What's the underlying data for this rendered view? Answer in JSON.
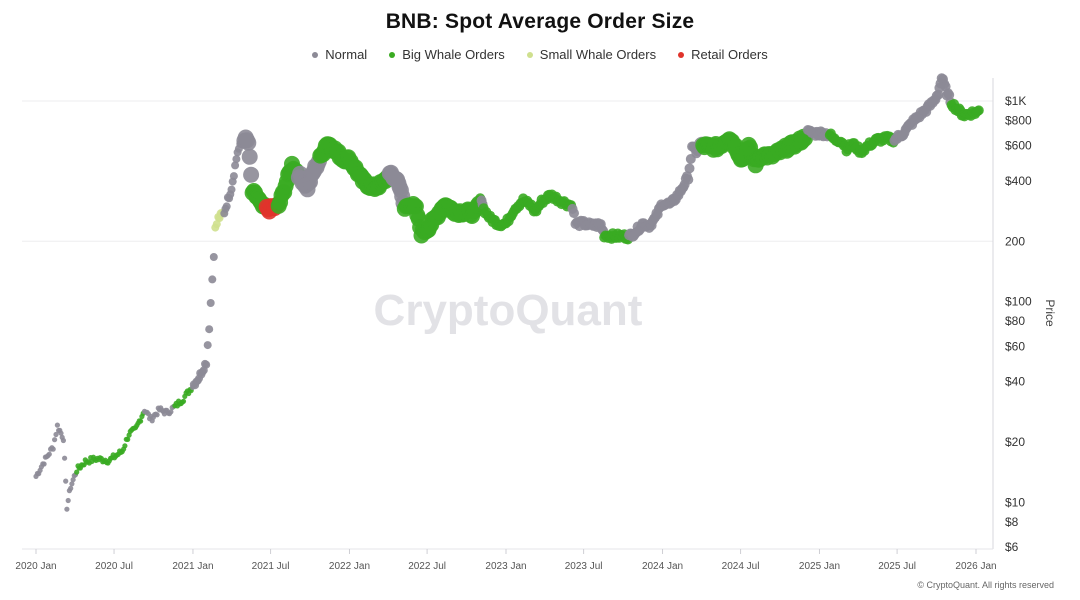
{
  "chart_data": {
    "type": "scatter",
    "title": "BNB: Spot Average Order Size",
    "ylabel": "Price",
    "yscale": "log",
    "ylim": [
      6,
      1400
    ],
    "xlim": [
      "2020-01-01",
      "2026-01-20"
    ],
    "x_ticks": [
      {
        "date": "2020-01-01",
        "label": "2020 Jan"
      },
      {
        "date": "2020-07-01",
        "label": "2020 Jul"
      },
      {
        "date": "2021-01-01",
        "label": "2021 Jan"
      },
      {
        "date": "2021-07-01",
        "label": "2021 Jul"
      },
      {
        "date": "2022-01-01",
        "label": "2022 Jan"
      },
      {
        "date": "2022-07-01",
        "label": "2022 Jul"
      },
      {
        "date": "2023-01-01",
        "label": "2023 Jan"
      },
      {
        "date": "2023-07-01",
        "label": "2023 Jul"
      },
      {
        "date": "2024-01-01",
        "label": "2024 Jan"
      },
      {
        "date": "2024-07-01",
        "label": "2024 Jul"
      },
      {
        "date": "2025-01-01",
        "label": "2025 Jan"
      },
      {
        "date": "2025-07-01",
        "label": "2025 Jul"
      },
      {
        "date": "2026-01-01",
        "label": "2026 Jan"
      }
    ],
    "y_ticks": [
      {
        "value": 1000,
        "label": "$1K"
      },
      {
        "value": 800,
        "label": "$800"
      },
      {
        "value": 600,
        "label": "$600"
      },
      {
        "value": 400,
        "label": "$400"
      },
      {
        "value": 200,
        "label": "200"
      },
      {
        "value": 100,
        "label": "$100"
      },
      {
        "value": 80,
        "label": "$80"
      },
      {
        "value": 60,
        "label": "$60"
      },
      {
        "value": 40,
        "label": "$40"
      },
      {
        "value": 20,
        "label": "$20"
      },
      {
        "value": 10,
        "label": "$10"
      },
      {
        "value": 8,
        "label": "$8"
      },
      {
        "value": 6,
        "label": "$6"
      }
    ],
    "gridlines": [
      1000,
      200
    ],
    "legend_position": "top-center",
    "series": [
      {
        "name": "Normal",
        "color": "#8c8a96"
      },
      {
        "name": "Big Whale Orders",
        "color": "#3aab22"
      },
      {
        "name": "Small Whale Orders",
        "color": "#cfe08e"
      },
      {
        "name": "Retail Orders",
        "color": "#e0332b"
      }
    ],
    "price_path": [
      [
        "2020-01-01",
        13.5,
        0
      ],
      [
        "2020-01-20",
        16,
        0
      ],
      [
        "2020-02-10",
        19,
        0
      ],
      [
        "2020-02-20",
        24,
        0
      ],
      [
        "2020-03-05",
        21,
        0
      ],
      [
        "2020-03-13",
        9.5,
        0
      ],
      [
        "2020-03-22",
        12,
        0
      ],
      [
        "2020-04-05",
        14.5,
        1
      ],
      [
        "2020-04-25",
        16,
        1
      ],
      [
        "2020-05-20",
        16.5,
        1
      ],
      [
        "2020-06-20",
        16.2,
        1
      ],
      [
        "2020-07-20",
        18,
        1
      ],
      [
        "2020-08-05",
        22,
        1
      ],
      [
        "2020-08-20",
        23,
        1
      ],
      [
        "2020-09-10",
        29,
        0
      ],
      [
        "2020-09-25",
        26,
        0
      ],
      [
        "2020-10-15",
        29,
        0
      ],
      [
        "2020-11-01",
        28,
        0
      ],
      [
        "2020-11-20",
        30,
        1
      ],
      [
        "2020-12-10",
        33,
        1
      ],
      [
        "2020-12-31",
        38,
        0
      ],
      [
        "2021-01-15",
        42,
        0
      ],
      [
        "2021-02-01",
        50,
        0
      ],
      [
        "2021-02-08",
        75,
        0
      ],
      [
        "2021-02-15",
        130,
        0
      ],
      [
        "2021-02-22",
        230,
        2
      ],
      [
        "2021-03-01",
        260,
        2
      ],
      [
        "2021-03-15",
        280,
        0
      ],
      [
        "2021-04-01",
        370,
        0
      ],
      [
        "2021-04-15",
        560,
        0
      ],
      [
        "2021-05-01",
        650,
        0
      ],
      [
        "2021-05-10",
        620,
        0
      ],
      [
        "2021-05-20",
        350,
        1
      ],
      [
        "2021-06-01",
        330,
        1
      ],
      [
        "2021-06-10",
        300,
        1
      ],
      [
        "2021-06-22",
        290,
        3
      ],
      [
        "2021-07-01",
        290,
        3
      ],
      [
        "2021-07-20",
        300,
        1
      ],
      [
        "2021-08-05",
        380,
        1
      ],
      [
        "2021-08-20",
        480,
        1
      ],
      [
        "2021-09-05",
        430,
        0
      ],
      [
        "2021-09-25",
        370,
        0
      ],
      [
        "2021-10-10",
        450,
        0
      ],
      [
        "2021-10-25",
        520,
        1
      ],
      [
        "2021-11-10",
        620,
        1
      ],
      [
        "2021-11-25",
        580,
        1
      ],
      [
        "2021-12-15",
        520,
        1
      ],
      [
        "2022-01-01",
        510,
        1
      ],
      [
        "2022-01-15",
        460,
        1
      ],
      [
        "2022-02-01",
        400,
        1
      ],
      [
        "2022-02-15",
        380,
        1
      ],
      [
        "2022-03-01",
        370,
        1
      ],
      [
        "2022-03-20",
        390,
        1
      ],
      [
        "2022-04-05",
        430,
        0
      ],
      [
        "2022-04-25",
        400,
        0
      ],
      [
        "2022-05-10",
        290,
        1
      ],
      [
        "2022-05-20",
        310,
        1
      ],
      [
        "2022-06-05",
        290,
        1
      ],
      [
        "2022-06-18",
        220,
        1
      ],
      [
        "2022-07-01",
        230,
        1
      ],
      [
        "2022-07-20",
        260,
        1
      ],
      [
        "2022-08-10",
        305,
        1
      ],
      [
        "2022-08-25",
        290,
        1
      ],
      [
        "2022-09-10",
        280,
        1
      ],
      [
        "2022-10-01",
        280,
        1
      ],
      [
        "2022-10-20",
        275,
        1
      ],
      [
        "2022-11-05",
        330,
        0
      ],
      [
        "2022-11-10",
        290,
        1
      ],
      [
        "2022-11-25",
        260,
        1
      ],
      [
        "2022-12-15",
        245,
        1
      ],
      [
        "2023-01-01",
        245,
        1
      ],
      [
        "2023-01-20",
        290,
        1
      ],
      [
        "2023-02-10",
        320,
        1
      ],
      [
        "2023-03-01",
        300,
        1
      ],
      [
        "2023-03-10",
        280,
        1
      ],
      [
        "2023-03-25",
        315,
        1
      ],
      [
        "2023-04-15",
        340,
        1
      ],
      [
        "2023-05-01",
        325,
        1
      ],
      [
        "2023-05-20",
        310,
        1
      ],
      [
        "2023-06-05",
        300,
        0
      ],
      [
        "2023-06-12",
        245,
        0
      ],
      [
        "2023-07-01",
        245,
        0
      ],
      [
        "2023-07-20",
        240,
        0
      ],
      [
        "2023-08-10",
        242,
        0
      ],
      [
        "2023-08-18",
        215,
        1
      ],
      [
        "2023-09-10",
        212,
        1
      ],
      [
        "2023-10-01",
        212,
        1
      ],
      [
        "2023-10-15",
        211,
        0
      ],
      [
        "2023-11-01",
        225,
        0
      ],
      [
        "2023-11-15",
        245,
        0
      ],
      [
        "2023-12-01",
        240,
        0
      ],
      [
        "2023-12-15",
        260,
        0
      ],
      [
        "2024-01-01",
        310,
        0
      ],
      [
        "2024-01-20",
        305,
        0
      ],
      [
        "2024-02-10",
        350,
        0
      ],
      [
        "2024-03-01",
        420,
        0
      ],
      [
        "2024-03-10",
        580,
        0
      ],
      [
        "2024-03-20",
        560,
        0
      ],
      [
        "2024-04-05",
        600,
        1
      ],
      [
        "2024-04-20",
        590,
        1
      ],
      [
        "2024-05-10",
        590,
        1
      ],
      [
        "2024-06-05",
        660,
        1
      ],
      [
        "2024-06-20",
        590,
        1
      ],
      [
        "2024-07-05",
        510,
        1
      ],
      [
        "2024-07-20",
        590,
        1
      ],
      [
        "2024-08-05",
        490,
        1
      ],
      [
        "2024-08-20",
        540,
        1
      ],
      [
        "2024-09-10",
        530,
        1
      ],
      [
        "2024-10-01",
        560,
        1
      ],
      [
        "2024-10-20",
        590,
        1
      ],
      [
        "2024-11-10",
        620,
        1
      ],
      [
        "2024-11-25",
        650,
        1
      ],
      [
        "2024-12-05",
        700,
        0
      ],
      [
        "2024-12-20",
        690,
        0
      ],
      [
        "2025-01-10",
        690,
        0
      ],
      [
        "2025-01-25",
        680,
        1
      ],
      [
        "2025-02-05",
        640,
        1
      ],
      [
        "2025-02-20",
        640,
        1
      ],
      [
        "2025-03-05",
        580,
        1
      ],
      [
        "2025-03-20",
        610,
        1
      ],
      [
        "2025-04-07",
        560,
        1
      ],
      [
        "2025-04-25",
        600,
        1
      ],
      [
        "2025-05-15",
        640,
        1
      ],
      [
        "2025-06-05",
        650,
        1
      ],
      [
        "2025-06-25",
        640,
        0
      ],
      [
        "2025-07-15",
        690,
        0
      ],
      [
        "2025-08-05",
        780,
        0
      ],
      [
        "2025-08-25",
        860,
        0
      ],
      [
        "2025-09-10",
        920,
        0
      ],
      [
        "2025-09-25",
        1000,
        0
      ],
      [
        "2025-10-05",
        1100,
        0
      ],
      [
        "2025-10-13",
        1300,
        0
      ],
      [
        "2025-10-25",
        1100,
        0
      ],
      [
        "2025-11-05",
        980,
        1
      ],
      [
        "2025-11-20",
        900,
        1
      ],
      [
        "2025-12-05",
        850,
        1
      ],
      [
        "2025-12-20",
        870,
        1
      ],
      [
        "2026-01-05",
        880,
        1
      ],
      [
        "2026-01-10",
        910,
        1
      ]
    ]
  },
  "watermark": "CryptoQuant",
  "footer": "© CryptoQuant. All rights reserved"
}
